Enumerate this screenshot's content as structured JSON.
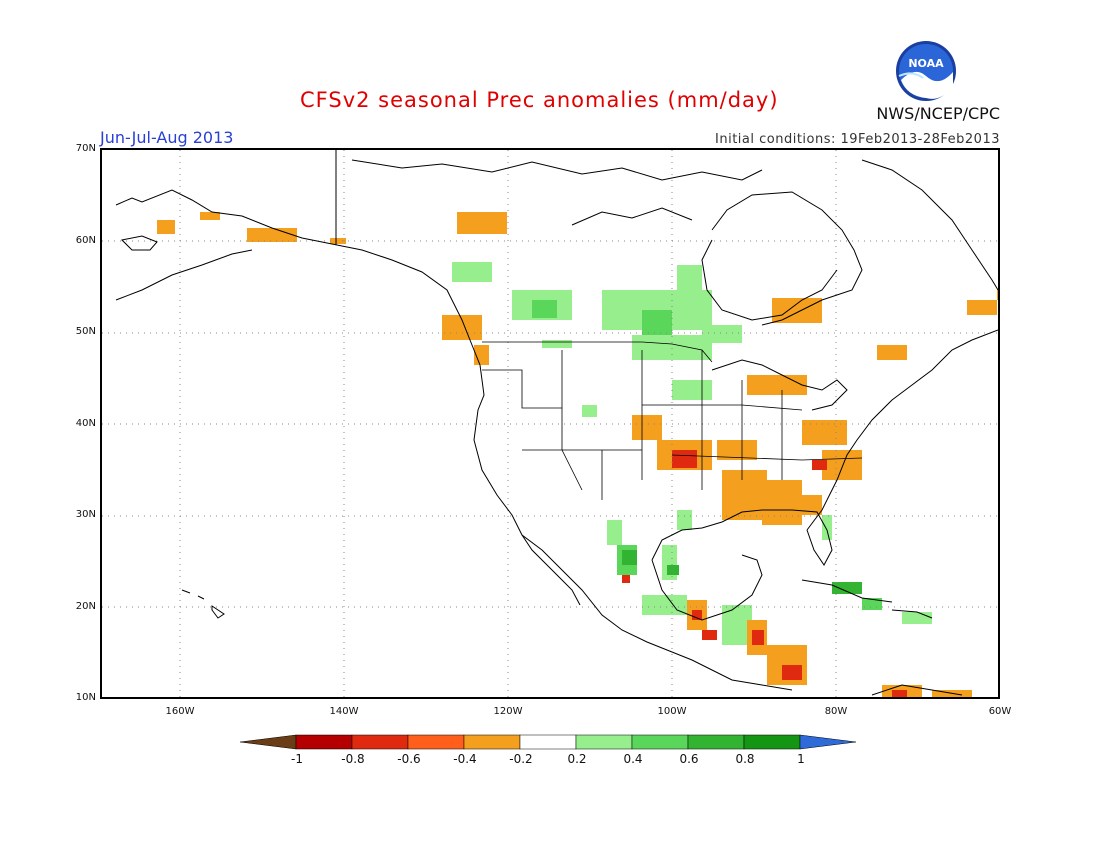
{
  "header": {
    "title": "CFSv2 seasonal Prec anomalies (mm/day)",
    "period": "Jun-Jul-Aug 2013",
    "initial_conditions": "Initial conditions: 19Feb2013-28Feb2013",
    "agency": "NWS/NCEP/CPC",
    "logo_text": "NOAA"
  },
  "map": {
    "lat_labels": [
      "70N",
      "60N",
      "50N",
      "40N",
      "30N",
      "20N",
      "10N"
    ],
    "lon_labels": [
      "160W",
      "140W",
      "120W",
      "100W",
      "80W",
      "60W"
    ],
    "extent": {
      "lon_min": -172,
      "lon_max": -60,
      "lat_min": 10,
      "lat_max": 70
    }
  },
  "colorbar": {
    "labels": [
      "-1",
      "-0.8",
      "-0.6",
      "-0.4",
      "-0.2",
      "0.2",
      "0.4",
      "0.6",
      "0.8",
      "1"
    ],
    "colors": [
      "#6b3d16",
      "#b40000",
      "#e02a10",
      "#ff5f1a",
      "#f4a01e",
      "#ffffff",
      "#96ee8c",
      "#5ad65a",
      "#32b432",
      "#149614",
      "#2f6ad9"
    ]
  },
  "anomaly_colors": {
    "orange": "#f4a01e",
    "dark_orange": "#ff5f1a",
    "red": "#e02a10",
    "light_green": "#96ee8c",
    "green": "#5ad65a",
    "dark_green": "#32b432"
  }
}
